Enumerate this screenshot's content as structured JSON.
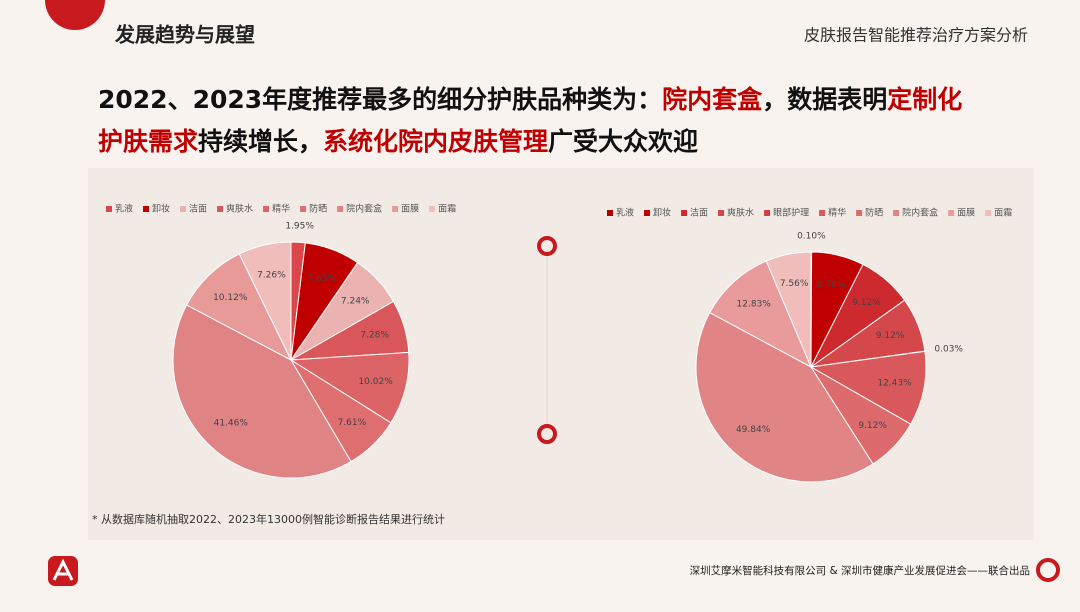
{
  "header": {
    "section": "发展趋势与展望",
    "subtitle": "皮肤报告智能推荐治疗方案分析"
  },
  "headline": {
    "lines": [
      [
        {
          "text": "2022、2023年度推荐最多的细分护肤品种类为：",
          "highlight": false
        },
        {
          "text": "院内套盒",
          "highlight": true
        },
        {
          "text": "，数据表明",
          "highlight": false
        },
        {
          "text": "定制化",
          "highlight": true
        }
      ],
      [
        {
          "text": "护肤需求",
          "highlight": true
        },
        {
          "text": "持续增长，",
          "highlight": false
        },
        {
          "text": "系统化院内皮肤管理",
          "highlight": true
        },
        {
          "text": "广受大众欢迎",
          "highlight": false
        }
      ]
    ]
  },
  "chart_data": [
    {
      "type": "pie",
      "categories": [
        "乳液",
        "卸妆",
        "洁面",
        "爽肤水",
        "精华",
        "防晒",
        "院内套盒",
        "面膜",
        "面霜"
      ],
      "values": [
        1.95,
        7.65,
        7.24,
        7.28,
        10.02,
        7.61,
        41.46,
        10.12,
        7.26
      ],
      "value_labels": [
        "1.95%",
        "7.65%",
        "7.24%",
        "7.28%",
        "10.02%",
        "7.61%",
        "41.46%",
        "10.12%",
        "7.26%"
      ],
      "colors": [
        "#d9474b",
        "#c00000",
        "#eab3b1",
        "#d9575a",
        "#dc6366",
        "#de6e70",
        "#e08384",
        "#e89a99",
        "#f0bdba"
      ]
    },
    {
      "type": "pie",
      "categories": [
        "乳液",
        "卸妆",
        "洁面",
        "爽肤水",
        "眼部护理",
        "精华",
        "防晒",
        "院内套盒",
        "面膜",
        "面霜"
      ],
      "values": [
        0.1,
        8.78,
        9.12,
        9.12,
        0.03,
        12.43,
        9.12,
        49.84,
        12.83,
        7.56
      ],
      "value_labels": [
        "0.10%",
        "8.78%",
        "9.12%",
        "9.12%",
        "0.03%",
        "12.43%",
        "9.12%",
        "49.84%",
        "12.83%",
        "7.56%"
      ],
      "colors": [
        "#b00000",
        "#c00000",
        "#cc2a2e",
        "#d4474a",
        "#cf3f42",
        "#d9585b",
        "#dd6b6d",
        "#e08485",
        "#e89b9a",
        "#f0bdba"
      ]
    }
  ],
  "footnote": "* 从数据库随机抽取2022、2023年13000例智能诊断报告结果进行统计",
  "footer": "深圳艾摩米智能科技有限公司 & 深圳市健康产业发展促进会——联合出品"
}
